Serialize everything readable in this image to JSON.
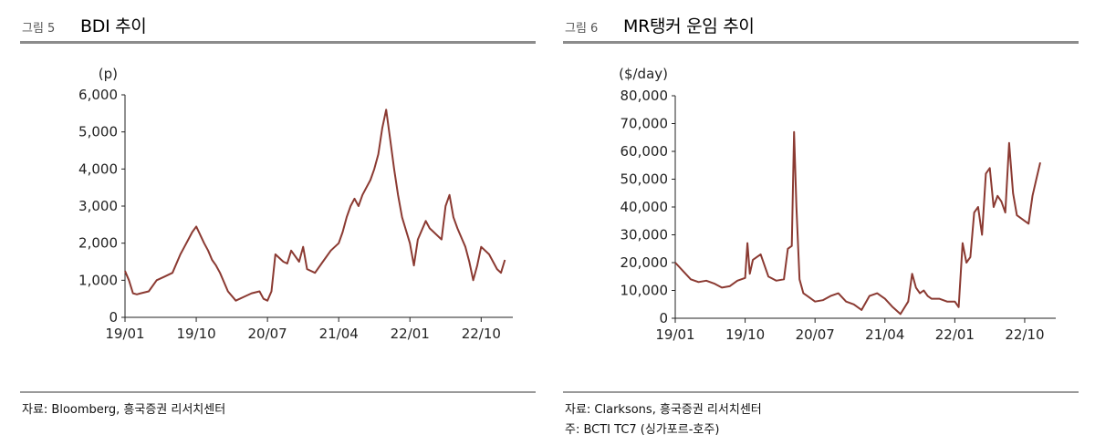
{
  "figures": [
    {
      "number": "그림 5",
      "title": "BDI 추이",
      "source": "자료: Bloomberg, 흥국증권 리서치센터",
      "note": "",
      "chart_data": {
        "type": "line",
        "ylabel": "(p)",
        "ylim": [
          0,
          6000
        ],
        "yticks": [
          "0",
          "1,000",
          "2,000",
          "3,000",
          "4,000",
          "5,000",
          "6,000"
        ],
        "ytick_values": [
          0,
          1000,
          2000,
          3000,
          4000,
          5000,
          6000
        ],
        "xlim": [
          0,
          49
        ],
        "xticks": [
          "19/01",
          "19/10",
          "20/07",
          "21/04",
          "22/01",
          "22/10"
        ],
        "xtick_values": [
          0,
          9,
          18,
          27,
          36,
          45
        ],
        "color": "#8b3a32",
        "series": [
          {
            "name": "",
            "x": [
              0,
              0.5,
              1,
              1.5,
              2,
              3,
              4,
              5,
              6,
              7,
              7.5,
              8,
              8.5,
              9,
              10,
              10.5,
              11,
              11.5,
              12,
              13,
              14,
              15,
              16,
              17,
              17.5,
              18,
              18.5,
              19,
              20,
              20.5,
              21,
              22,
              22.5,
              23,
              24,
              25,
              26,
              27,
              27.5,
              28,
              28.5,
              29,
              29.5,
              30,
              30.5,
              31,
              31.5,
              32,
              32.5,
              33,
              33.5,
              34,
              34.5,
              35,
              36,
              36.5,
              37,
              38,
              38.5,
              39,
              40,
              40.5,
              41,
              41.5,
              42,
              43,
              43.5,
              44,
              44.5,
              45,
              46,
              47,
              47.5,
              48
            ],
            "y": [
              1250,
              1000,
              650,
              620,
              650,
              700,
              1000,
              1100,
              1200,
              1700,
              1900,
              2100,
              2300,
              2450,
              2000,
              1800,
              1550,
              1400,
              1200,
              700,
              450,
              550,
              650,
              700,
              500,
              450,
              700,
              1700,
              1500,
              1450,
              1800,
              1500,
              1900,
              1300,
              1200,
              1500,
              1800,
              2000,
              2300,
              2700,
              3000,
              3200,
              3000,
              3300,
              3500,
              3700,
              4000,
              4400,
              5100,
              5600,
              4800,
              4000,
              3300,
              2700,
              2000,
              1400,
              2100,
              2600,
              2400,
              2300,
              2100,
              3000,
              3300,
              2700,
              2400,
              1900,
              1500,
              1000,
              1400,
              1900,
              1700,
              1300,
              1200,
              1550
            ]
          }
        ]
      }
    },
    {
      "number": "그림 6",
      "title": "MR탱커 운임 추이",
      "source": "자료: Clarksons, 흥국증권 리서치센터",
      "note": "주: BCTI TC7 (싱가포르-호주)",
      "chart_data": {
        "type": "line",
        "ylabel": "($/day)",
        "ylim": [
          0,
          80000
        ],
        "yticks": [
          "0",
          "10,000",
          "20,000",
          "30,000",
          "40,000",
          "50,000",
          "60,000",
          "70,000",
          "80,000"
        ],
        "ytick_values": [
          0,
          10000,
          20000,
          30000,
          40000,
          50000,
          60000,
          70000,
          80000
        ],
        "xlim": [
          0,
          49
        ],
        "xticks": [
          "19/01",
          "19/10",
          "20/07",
          "21/04",
          "22/01",
          "22/10"
        ],
        "xtick_values": [
          0,
          9,
          18,
          27,
          36,
          45
        ],
        "color": "#8b3a32",
        "series": [
          {
            "name": "",
            "x": [
              0,
              1,
              2,
              3,
              4,
              5,
              6,
              7,
              8,
              9,
              9.3,
              9.6,
              10,
              11,
              12,
              13,
              14,
              14.5,
              15,
              15.3,
              15.6,
              16,
              16.5,
              17,
              18,
              19,
              20,
              21,
              22,
              23,
              24,
              25,
              26,
              26.5,
              27,
              28,
              29,
              30,
              30.5,
              31,
              31.5,
              32,
              32.5,
              33,
              34,
              35,
              36,
              36.5,
              37,
              37.5,
              38,
              38.5,
              39,
              39.5,
              40,
              40.5,
              41,
              41.5,
              42,
              42.5,
              43,
              43.5,
              44,
              45,
              45.5,
              46,
              46.5,
              47
            ],
            "y": [
              20000,
              17000,
              14000,
              13000,
              13500,
              12500,
              11000,
              11500,
              13500,
              14500,
              27000,
              16000,
              21000,
              23000,
              15000,
              13500,
              14000,
              25000,
              26000,
              67000,
              40000,
              14000,
              9000,
              8000,
              6000,
              6500,
              8000,
              9000,
              6000,
              5000,
              3000,
              8000,
              9000,
              8000,
              7000,
              4000,
              1500,
              6000,
              16000,
              11000,
              9000,
              10000,
              8000,
              7000,
              7000,
              6000,
              6000,
              4000,
              27000,
              20000,
              22000,
              38000,
              40000,
              30000,
              52000,
              54000,
              40000,
              44000,
              42000,
              38000,
              63000,
              45000,
              37000,
              35000,
              34000,
              44000,
              50000,
              56000
            ]
          }
        ]
      }
    }
  ]
}
